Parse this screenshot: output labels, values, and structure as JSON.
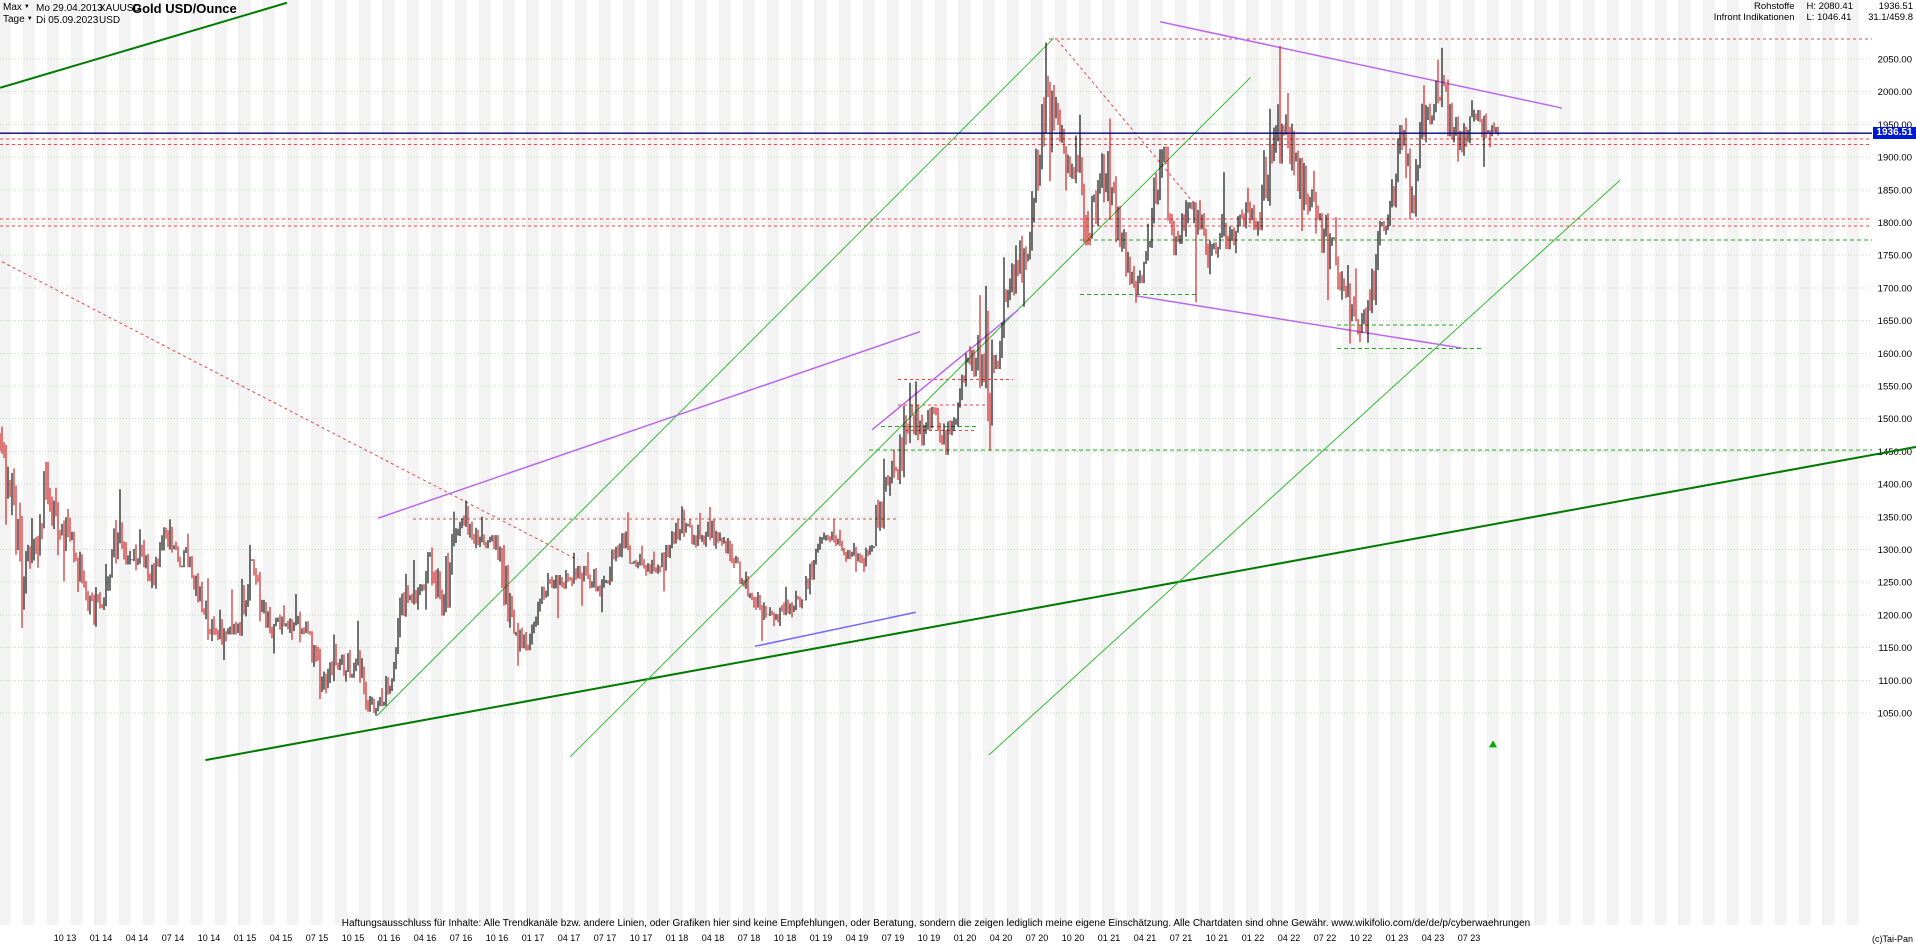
{
  "header": {
    "range_selector": "Max",
    "period_selector": "Tage",
    "dropdown_icon": "▼",
    "start_date": "Mo 29.04.2013",
    "end_date": "Di 05.09.2023",
    "symbol": "XAUUSD",
    "title": "Gold USD/Ounce",
    "currency": "USD"
  },
  "info_panel": {
    "category": "Rohstoffe",
    "provider": "Infront Indikationen",
    "high_label": "H:",
    "high_value": "2080.41",
    "low_label": "L:",
    "low_value": "1046.41",
    "last_price": "1936.51",
    "range_info": "31.1/459.8"
  },
  "price_axis": {
    "labels": [
      "2050.00",
      "2000.00",
      "1950.00",
      "1900.00",
      "1850.00",
      "1800.00",
      "1750.00",
      "1700.00",
      "1650.00",
      "1600.00",
      "1550.00",
      "1500.00",
      "1450.00",
      "1400.00",
      "1350.00",
      "1300.00",
      "1250.00",
      "1200.00",
      "1150.00",
      "1100.00",
      "1050.00"
    ],
    "current_price_badge": "1936.51"
  },
  "time_axis": {
    "labels": [
      "10 13",
      "01 14",
      "04 14",
      "07 14",
      "10 14",
      "01 15",
      "04 15",
      "07 15",
      "10 15",
      "01 16",
      "04 16",
      "07 16",
      "10 16",
      "01 17",
      "04 17",
      "07 17",
      "10 17",
      "01 18",
      "04 18",
      "07 18",
      "10 18",
      "01 19",
      "04 19",
      "07 19",
      "10 19",
      "01 20",
      "04 20",
      "07 20",
      "10 20",
      "01 21",
      "04 21",
      "07 21",
      "10 21",
      "01 22",
      "04 22",
      "07 22",
      "10 22",
      "01 23",
      "04 23",
      "07 23"
    ]
  },
  "footer": {
    "disclaimer": "Haftungsausschluss für Inhalte: Alle Trendkanäle bzw. andere Linien, oder Grafiken hier sind keine Empfehlungen, oder Beratung, sondern die zeigen lediglich meine eigene Einschätzung. Alle Chartdaten sind ohne Gewähr.  www.wikifolio.com/de/de/p/cyberwaehrungen",
    "copyright": "(c)Tai-Pan"
  },
  "chart_data": {
    "type": "candlestick",
    "title": "Gold USD/Ounce",
    "ylabel": "USD",
    "ylim": [
      1050,
      2050
    ],
    "y_step": 50,
    "frequency": "monthly",
    "start_month": "2013-05",
    "prev_close": 1472,
    "last_price": 1936.51,
    "high_all_time": 2080.41,
    "low_all_time": 1046.41,
    "colors": {
      "up": "#000000",
      "down": "#cc1111"
    },
    "x_axis": {
      "first_label_index": 5,
      "label_step": 3
    },
    "series": [
      [
        1388,
        1488,
        1338
      ],
      [
        1235,
        1424,
        1180
      ],
      [
        1312,
        1348,
        1208
      ],
      [
        1395,
        1434,
        1272
      ],
      [
        1329,
        1434,
        1291
      ],
      [
        1324,
        1362,
        1251
      ],
      [
        1253,
        1327,
        1235
      ],
      [
        1205,
        1268,
        1185
      ],
      [
        1244,
        1278,
        1182
      ],
      [
        1326,
        1345,
        1237
      ],
      [
        1284,
        1392,
        1277
      ],
      [
        1291,
        1331,
        1268
      ],
      [
        1250,
        1315,
        1241
      ],
      [
        1327,
        1334,
        1240
      ],
      [
        1282,
        1346,
        1281
      ],
      [
        1287,
        1324,
        1273
      ],
      [
        1208,
        1290,
        1204
      ],
      [
        1173,
        1256,
        1160
      ],
      [
        1167,
        1208,
        1131
      ],
      [
        1184,
        1239,
        1170
      ],
      [
        1283,
        1307,
        1168
      ],
      [
        1213,
        1285,
        1190
      ],
      [
        1184,
        1223,
        1141
      ],
      [
        1184,
        1215,
        1170
      ],
      [
        1190,
        1232,
        1162
      ],
      [
        1171,
        1205,
        1158
      ],
      [
        1095,
        1175,
        1071
      ],
      [
        1134,
        1170,
        1080
      ],
      [
        1115,
        1156,
        1098
      ],
      [
        1142,
        1191,
        1104
      ],
      [
        1064,
        1146,
        1052
      ],
      [
        1061,
        1088,
        1046
      ],
      [
        1118,
        1128,
        1061
      ],
      [
        1238,
        1263,
        1117
      ],
      [
        1232,
        1284,
        1208
      ],
      [
        1293,
        1296,
        1208
      ],
      [
        1215,
        1303,
        1199
      ],
      [
        1322,
        1358,
        1199
      ],
      [
        1351,
        1375,
        1310
      ],
      [
        1309,
        1367,
        1302
      ],
      [
        1316,
        1350,
        1302
      ],
      [
        1277,
        1322,
        1241
      ],
      [
        1173,
        1307,
        1171
      ],
      [
        1152,
        1188,
        1122
      ],
      [
        1210,
        1220,
        1146
      ],
      [
        1249,
        1264,
        1205
      ],
      [
        1249,
        1261,
        1195
      ],
      [
        1268,
        1295,
        1240
      ],
      [
        1269,
        1275,
        1214
      ],
      [
        1242,
        1296,
        1236
      ],
      [
        1269,
        1274,
        1204
      ],
      [
        1321,
        1325,
        1251
      ],
      [
        1280,
        1357,
        1278
      ],
      [
        1271,
        1306,
        1260
      ],
      [
        1275,
        1297,
        1263
      ],
      [
        1303,
        1307,
        1236
      ],
      [
        1345,
        1366,
        1302
      ],
      [
        1318,
        1361,
        1307
      ],
      [
        1325,
        1356,
        1303
      ],
      [
        1315,
        1365,
        1301
      ],
      [
        1298,
        1326,
        1282
      ],
      [
        1253,
        1309,
        1247
      ],
      [
        1224,
        1266,
        1211
      ],
      [
        1201,
        1235,
        1160
      ],
      [
        1192,
        1212,
        1183
      ],
      [
        1215,
        1243,
        1183
      ],
      [
        1222,
        1237,
        1196
      ],
      [
        1282,
        1284,
        1222
      ],
      [
        1321,
        1326,
        1277
      ],
      [
        1313,
        1347,
        1305
      ],
      [
        1292,
        1330,
        1281
      ],
      [
        1283,
        1310,
        1266
      ],
      [
        1305,
        1307,
        1266
      ],
      [
        1409,
        1439,
        1305
      ],
      [
        1414,
        1453,
        1382
      ],
      [
        1520,
        1555,
        1400
      ],
      [
        1472,
        1557,
        1459
      ],
      [
        1513,
        1518,
        1459
      ],
      [
        1464,
        1517,
        1445
      ],
      [
        1517,
        1525,
        1445
      ],
      [
        1589,
        1611,
        1517
      ],
      [
        1585,
        1689,
        1547
      ],
      [
        1577,
        1703,
        1451
      ],
      [
        1687,
        1747,
        1576
      ],
      [
        1730,
        1765,
        1670
      ],
      [
        1781,
        1786,
        1671
      ],
      [
        1976,
        1981,
        1757
      ],
      [
        1968,
        2075,
        1863
      ],
      [
        1886,
        1992,
        1849
      ],
      [
        1879,
        1933,
        1860
      ],
      [
        1777,
        1965,
        1765
      ],
      [
        1898,
        1906,
        1775
      ],
      [
        1848,
        1959,
        1804
      ],
      [
        1734,
        1871,
        1717
      ],
      [
        1708,
        1755,
        1677
      ],
      [
        1769,
        1798,
        1707
      ],
      [
        1907,
        1912,
        1761
      ],
      [
        1770,
        1916,
        1750
      ],
      [
        1814,
        1834,
        1750
      ],
      [
        1814,
        1831,
        1678
      ],
      [
        1757,
        1834,
        1721
      ],
      [
        1783,
        1813,
        1746
      ],
      [
        1775,
        1877,
        1759
      ],
      [
        1829,
        1831,
        1753
      ],
      [
        1797,
        1853,
        1780
      ],
      [
        1909,
        1974,
        1788
      ],
      [
        1937,
        2070,
        1890
      ],
      [
        1897,
        1998,
        1872
      ],
      [
        1837,
        1910,
        1787
      ],
      [
        1807,
        1879,
        1783
      ],
      [
        1766,
        1814,
        1681
      ],
      [
        1711,
        1808,
        1682
      ],
      [
        1661,
        1735,
        1615
      ],
      [
        1634,
        1730,
        1617
      ],
      [
        1769,
        1787,
        1616
      ],
      [
        1824,
        1833,
        1765
      ],
      [
        1928,
        1949,
        1823
      ],
      [
        1827,
        1960,
        1805
      ],
      [
        1969,
        2010,
        1809
      ],
      [
        1990,
        2049,
        1950
      ],
      [
        1963,
        2067,
        1932
      ],
      [
        1919,
        1983,
        1893
      ],
      [
        1965,
        1987,
        1902
      ],
      [
        1940,
        1972,
        1885
      ],
      [
        1936.51,
        1953,
        1915
      ]
    ],
    "overlays": {
      "price_line": {
        "price": 1936.51,
        "color": "#000088"
      },
      "trendlines": [
        {
          "name": "upper-left-channel-line",
          "i1": -0.4,
          "p1": 2006,
          "i2": 23.5,
          "p2": 2136,
          "color": "#007a00",
          "width": 2
        },
        {
          "name": "long-term-support-line",
          "i1": 16.7,
          "p1": 978,
          "i2": 159.3,
          "p2": 1457,
          "color": "#007a00",
          "width": 2
        },
        {
          "name": "steep-uptrend-1",
          "i1": 31,
          "p1": 1046,
          "i2": 87.4,
          "p2": 2082,
          "color": "#33bb33",
          "width": 1
        },
        {
          "name": "steep-uptrend-2",
          "i1": 47.1,
          "p1": 983,
          "i2": 103.8,
          "p2": 2022,
          "color": "#33bb33",
          "width": 1
        },
        {
          "name": "steep-uptrend-3",
          "i1": 82,
          "p1": 986,
          "i2": 134.6,
          "p2": 1865,
          "color": "#33bb33",
          "width": 1
        },
        {
          "name": "left-downtrend-dashed",
          "i1": -0.25,
          "p1": 1740,
          "i2": 47.75,
          "p2": 1284,
          "color": "#ee4444",
          "width": 1,
          "dash": "3 3"
        },
        {
          "name": "peak-downtrend-dashed",
          "i1": 87.7,
          "p1": 2079,
          "i2": 99.2,
          "p2": 1827,
          "color": "#ee4444",
          "width": 1,
          "dash": "3 3"
        },
        {
          "name": "violet-uptrend-mid",
          "i1": 31.1,
          "p1": 1348,
          "i2": 76.25,
          "p2": 1633,
          "color": "#bb66ee",
          "width": 1.5
        },
        {
          "name": "violet-uptrend-steep",
          "i1": 72.25,
          "p1": 1483,
          "i2": 84.4,
          "p2": 1666,
          "color": "#bb66ee",
          "width": 1.5
        },
        {
          "name": "violet-downtrend-top",
          "i1": 96.25,
          "p1": 2107,
          "i2": 129.75,
          "p2": 1975,
          "color": "#bb66ee",
          "width": 1.5
        },
        {
          "name": "violet-downtrend-mid",
          "i1": 94.2,
          "p1": 1688,
          "i2": 121.4,
          "p2": 1608,
          "color": "#bb66ee",
          "width": 1.5
        },
        {
          "name": "blue-violet-short",
          "i1": 62.5,
          "p1": 1152,
          "i2": 75.9,
          "p2": 1204,
          "color": "#7766ff",
          "width": 1.5
        }
      ],
      "levels": [
        {
          "price": 2080.41,
          "i1": 87,
          "i2": 155.6,
          "color": "#ee4444",
          "dash": "3 3"
        },
        {
          "price": 1928,
          "i1": -0.42,
          "i2": 155.6,
          "color": "#ee4444",
          "dash": "3 3"
        },
        {
          "price": 1919,
          "i1": -0.42,
          "i2": 155.6,
          "color": "#ee4444",
          "dash": "3 3"
        },
        {
          "price": 1805,
          "i1": -0.42,
          "i2": 155.6,
          "color": "#ee4444",
          "dash": "3 3"
        },
        {
          "price": 1795,
          "i1": -0.42,
          "i2": 155.6,
          "color": "#ee4444",
          "dash": "3 3"
        },
        {
          "price": 1560,
          "i1": 74.4,
          "i2": 84,
          "color": "#ee4444",
          "dash": "3 3"
        },
        {
          "price": 1521,
          "i1": 74.4,
          "i2": 81.7,
          "color": "#ee4444",
          "dash": "3 3"
        },
        {
          "price": 1482,
          "i1": 75,
          "i2": 80.8,
          "color": "#ee4444",
          "dash": "3 3"
        },
        {
          "price": 1347,
          "i1": 34,
          "i2": 74.5,
          "color": "#ee4444",
          "dash": "3 3"
        },
        {
          "price": 1773,
          "i1": 89.6,
          "i2": 155.6,
          "color": "#22aa22",
          "dash": "4 3"
        },
        {
          "price": 1690,
          "i1": 89.6,
          "i2": 99.2,
          "color": "#22aa22",
          "dash": "4 3"
        },
        {
          "price": 1643,
          "i1": 111,
          "i2": 121,
          "color": "#22aa22",
          "dash": "4 3"
        },
        {
          "price": 1607,
          "i1": 111,
          "i2": 123,
          "color": "#22aa22",
          "dash": "4 3"
        },
        {
          "price": 1452,
          "i1": 72,
          "i2": 155.6,
          "color": "#22aa22",
          "dash": "4 3"
        },
        {
          "price": 1488,
          "i1": 73,
          "i2": 81,
          "color": "#22aa22",
          "dash": "4 3"
        }
      ],
      "markers": [
        {
          "name": "triangle-up-marker",
          "i": 124,
          "price": 1002,
          "color": "#00aa00"
        }
      ]
    }
  }
}
